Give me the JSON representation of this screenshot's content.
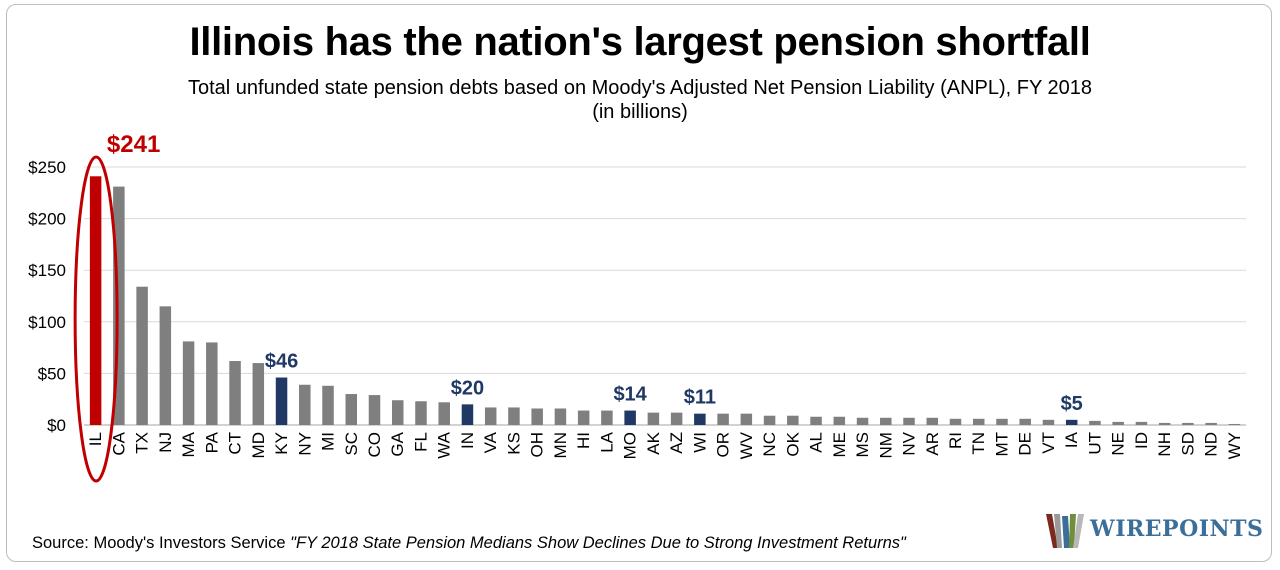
{
  "title": "Illinois has the nation's largest pension shortfall",
  "subtitle_line1": "Total unfunded state pension debts based on Moody's Adjusted Net Pension Liability (ANPL), FY 2018",
  "subtitle_line2": "(in billions)",
  "source_prefix": "Source: Moody's Investors Service ",
  "source_publication": "\"FY 2018 State Pension Medians Show Declines Due to Strong Investment Returns\"",
  "logo_text": "WIREPOINTS",
  "colors": {
    "default_bar": "#7f7f7f",
    "highlight_red": "#c00000",
    "highlight_navy": "#1f3864",
    "grid": "#d9d9d9"
  },
  "chart_data": {
    "type": "bar",
    "title": "Illinois has the nation's largest pension shortfall",
    "xlabel": "",
    "ylabel": "",
    "ylim": [
      0,
      250
    ],
    "yticks": [
      0,
      50,
      100,
      150,
      200,
      250
    ],
    "ytick_labels": [
      "$0",
      "$50",
      "$100",
      "$150",
      "$200",
      "$250"
    ],
    "grid": true,
    "legend": "none",
    "categories": [
      "IL",
      "CA",
      "TX",
      "NJ",
      "MA",
      "PA",
      "CT",
      "MD",
      "KY",
      "NY",
      "MI",
      "SC",
      "CO",
      "GA",
      "FL",
      "WA",
      "IN",
      "VA",
      "KS",
      "OH",
      "MN",
      "HI",
      "LA",
      "MO",
      "AK",
      "AZ",
      "WI",
      "OR",
      "WV",
      "NC",
      "OK",
      "AL",
      "ME",
      "MS",
      "NM",
      "NV",
      "AR",
      "RI",
      "TN",
      "MT",
      "DE",
      "VT",
      "IA",
      "UT",
      "NE",
      "ID",
      "NH",
      "SD",
      "ND",
      "WY"
    ],
    "values": [
      241,
      231,
      134,
      115,
      81,
      80,
      62,
      60,
      46,
      39,
      38,
      30,
      29,
      24,
      23,
      22,
      20,
      17,
      17,
      16,
      16,
      14,
      14,
      14,
      12,
      12,
      11,
      11,
      11,
      9,
      9,
      8,
      8,
      7,
      7,
      7,
      7,
      6,
      6,
      6,
      6,
      5,
      5,
      4,
      3,
      3,
      2,
      2,
      2,
      1
    ],
    "highlights": [
      {
        "category": "IL",
        "label": "$241",
        "color": "red"
      },
      {
        "category": "KY",
        "label": "$46",
        "color": "navy"
      },
      {
        "category": "IN",
        "label": "$20",
        "color": "navy"
      },
      {
        "category": "MO",
        "label": "$14",
        "color": "navy"
      },
      {
        "category": "WI",
        "label": "$11",
        "color": "navy"
      },
      {
        "category": "IA",
        "label": "$5",
        "color": "navy"
      }
    ],
    "annotations": [
      "IL circled in red"
    ]
  }
}
